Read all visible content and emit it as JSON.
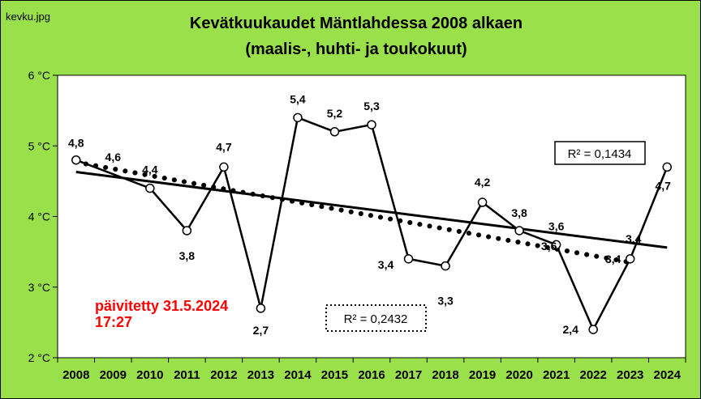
{
  "file_label": "kevku.jpg",
  "title_line1": "Kevätkuukaudet Mäntlahdessa 2008 alkaen",
  "title_line2": "(maalis-, huhti- ja toukokuut)",
  "updated_line1": "päivitetty 31.5.2024",
  "updated_line2": "17:27",
  "colors": {
    "background": "#99e04a",
    "plot_area": "#ffffff",
    "updated_text": "#ff0000",
    "series": "#000000"
  },
  "chart_data": {
    "type": "line",
    "title": "Kevätkuukaudet Mäntlahdessa 2008 alkaen (maalis-, huhti- ja toukokuut)",
    "categories": [
      "2008",
      "2009",
      "2010",
      "2011",
      "2012",
      "2013",
      "2014",
      "2015",
      "2016",
      "2017",
      "2018",
      "2019",
      "2020",
      "2021",
      "2022",
      "2023",
      "2024"
    ],
    "y_tick_labels": [
      "6 °C",
      "5 °C",
      "4 °C",
      "3 °C",
      "2 °C"
    ],
    "ylim": [
      2,
      6
    ],
    "grid": false,
    "points": [
      {
        "year": 2008,
        "value": 4.8,
        "label": "4,8"
      },
      {
        "year": 2010,
        "value": 4.4,
        "label": "4,4"
      },
      {
        "year": 2011,
        "value": 3.8,
        "label": "3,8"
      },
      {
        "year": 2012,
        "value": 4.7,
        "label": "4,7"
      },
      {
        "year": 2013,
        "value": 2.7,
        "label": "2,7"
      },
      {
        "year": 2014,
        "value": 5.4,
        "label": "5,4"
      },
      {
        "year": 2015,
        "value": 5.2,
        "label": "5,2"
      },
      {
        "year": 2016,
        "value": 5.3,
        "label": "5,3"
      },
      {
        "year": 2017,
        "value": 3.4,
        "label": "3,4"
      },
      {
        "year": 2018,
        "value": 3.3,
        "label": "3,3"
      },
      {
        "year": 2019,
        "value": 4.2,
        "label": "4,2"
      },
      {
        "year": 2020,
        "value": 3.8,
        "label": "3,8"
      },
      {
        "year": 2021,
        "value": 3.6,
        "label": "3,6"
      },
      {
        "year": 2022,
        "value": 2.4,
        "label": "2,4"
      },
      {
        "year": 2023,
        "value": 3.4,
        "label": "3,4"
      },
      {
        "year": 2024,
        "value": 4.7,
        "label": "4,7"
      }
    ],
    "extra_labels": [
      {
        "year": 2009,
        "label": "4,6"
      },
      {
        "year": 2021,
        "label": "3,6"
      },
      {
        "year": 2023,
        "label": "3,4"
      }
    ],
    "trendlines": [
      {
        "style": "solid",
        "from_year": 2008,
        "to_year": 2024,
        "start": 4.63,
        "end": 3.56,
        "r2_label": "R² = 0,1434"
      },
      {
        "style": "dotted",
        "from_year": 2008,
        "to_year": 2023,
        "start": 4.77,
        "end": 3.35,
        "r2_label": "R² = 0,2432"
      }
    ]
  }
}
